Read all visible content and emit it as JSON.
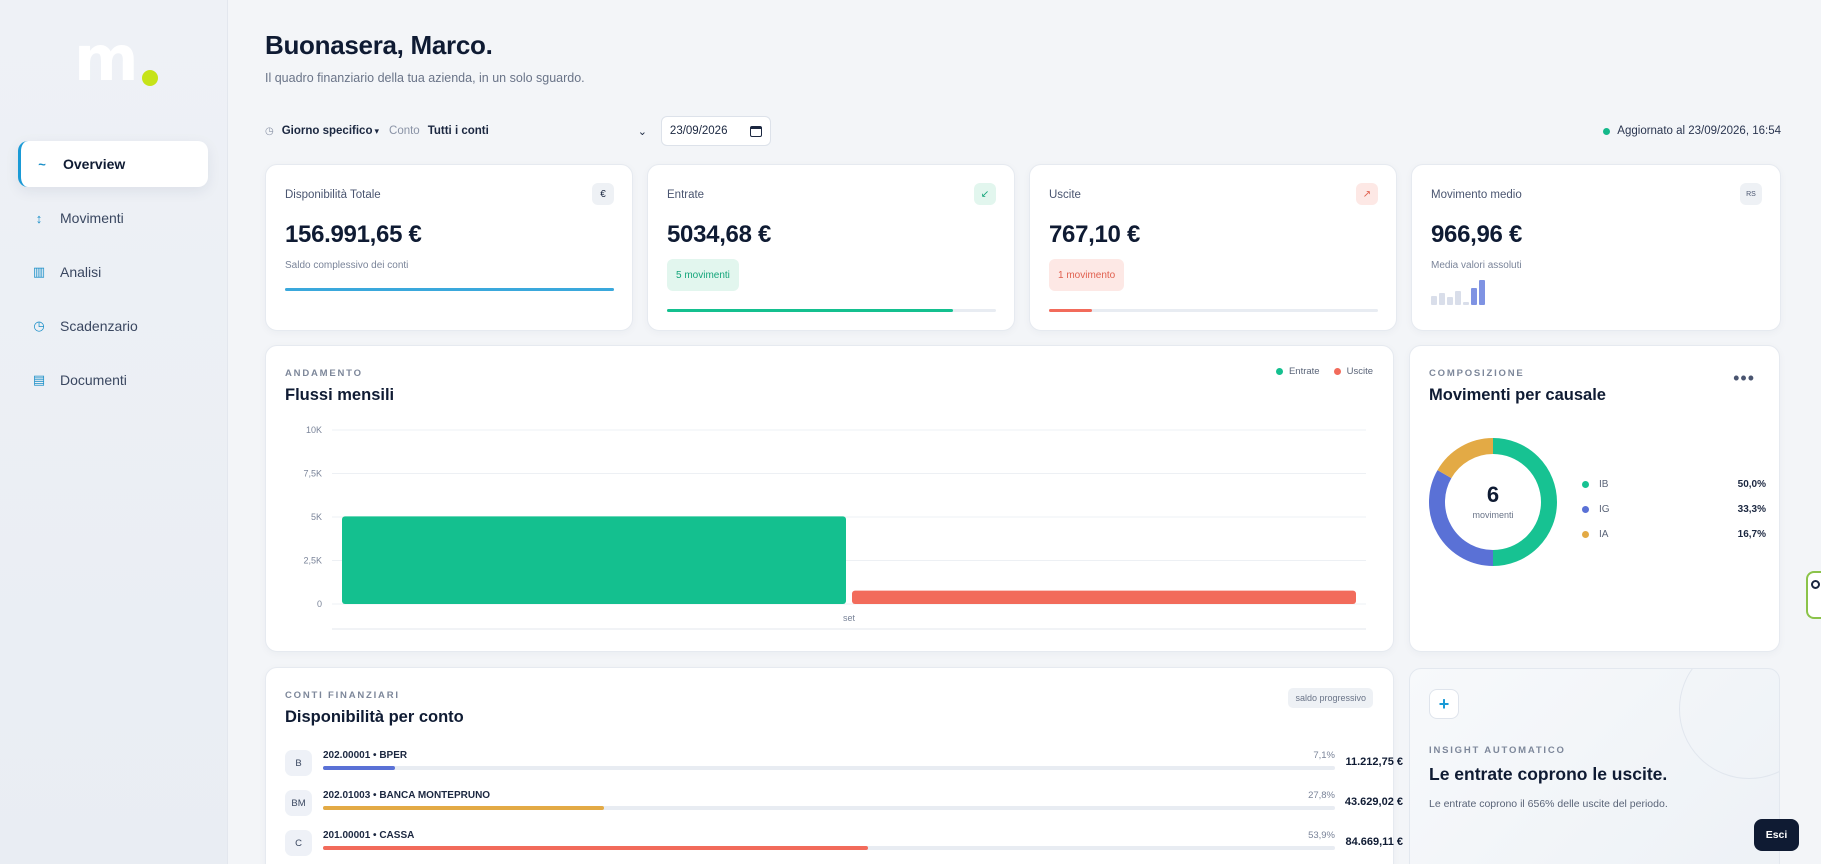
{
  "brand": {
    "logo_letter": "m"
  },
  "sidebar": {
    "items": [
      {
        "label": "Overview",
        "icon": "wave-icon",
        "glyph": "~",
        "active": true
      },
      {
        "label": "Movimenti",
        "icon": "up-down-arrows-icon",
        "glyph": "↕",
        "active": false
      },
      {
        "label": "Analisi",
        "icon": "columns-icon",
        "glyph": "▥",
        "active": false
      },
      {
        "label": "Scadenzario",
        "icon": "clock-icon",
        "glyph": "◷",
        "active": false
      },
      {
        "label": "Documenti",
        "icon": "document-list-icon",
        "glyph": "▤",
        "active": false
      }
    ]
  },
  "header": {
    "greeting": "Buonasera, Marco.",
    "subtitle": "Il quadro finanziario della tua azienda, in un solo sguardo."
  },
  "toolbar": {
    "period_select": "Giorno specifico",
    "account_label": "Conto",
    "account_select": "Tutti i conti",
    "date_value": "23/09/2026",
    "updated_text": "Aggiornato al 23/09/2026, 16:54"
  },
  "kpis": {
    "total": {
      "label": "Disponibilità Totale",
      "badge": "€",
      "value": "156.991,65 €",
      "sub": "Saldo complessivo dei conti",
      "bar_fraction": 1.0
    },
    "income": {
      "label": "Entrate",
      "badge": "↙",
      "value": "5034,68 €",
      "pill": "5 movimenti",
      "bar_fraction": 0.868
    },
    "expenses": {
      "label": "Uscite",
      "badge": "↗",
      "value": "767,10 €",
      "pill": "1 movimento",
      "bar_fraction": 0.132
    },
    "average": {
      "label": "Movimento medio",
      "badge": "RS",
      "value": "966,96 €",
      "sub": "Media valori assoluti",
      "mini_bar_levels": [
        0.35,
        0.45,
        0.3,
        0.55,
        0.12,
        0.65,
        0.95
      ]
    }
  },
  "flows": {
    "section_label": "ANDAMENTO",
    "title": "Flussi mensili",
    "legend": {
      "income": "Entrate",
      "expenses": "Uscite"
    }
  },
  "chart_data": {
    "type": "bar",
    "categories": [
      "set"
    ],
    "series": [
      {
        "name": "Entrate",
        "values": [
          5034.68
        ],
        "color": "#14c08f"
      },
      {
        "name": "Uscite",
        "values": [
          767.1
        ],
        "color": "#f26b5b"
      }
    ],
    "ylim": [
      0,
      10000
    ],
    "yticks": [
      0,
      2500,
      5000,
      7500,
      10000
    ],
    "ytick_labels": [
      "0",
      "2,5K",
      "5K",
      "7,5K",
      "10K"
    ],
    "grid": true,
    "legend": "top-right"
  },
  "composition": {
    "section_label": "COMPOSIZIONE",
    "title": "Movimenti per causale",
    "menu_icon": "more-horizontal-icon",
    "center_value": "6",
    "center_label": "movimenti",
    "slices": [
      {
        "name": "IB",
        "pct": "50,0%",
        "fraction": 0.5,
        "color": "#17c292"
      },
      {
        "name": "IG",
        "pct": "33,3%",
        "fraction": 0.333,
        "color": "#5a71d6"
      },
      {
        "name": "IA",
        "pct": "16,7%",
        "fraction": 0.167,
        "color": "#e3aa45"
      }
    ]
  },
  "accounts": {
    "section_label": "CONTI FINANZIARI",
    "title": "Disponibilità per conto",
    "tag": "saldo progressivo",
    "rows": [
      {
        "badge": "B",
        "name": "202.00001 • BPER",
        "pct": "7,1%",
        "fraction": 0.071,
        "amount": "11.212,75 €",
        "color": "#5a71d6"
      },
      {
        "badge": "BM",
        "name": "202.01003 • BANCA MONTEPRUNO",
        "pct": "27,8%",
        "fraction": 0.278,
        "amount": "43.629,02 €",
        "color": "#e3aa45"
      },
      {
        "badge": "C",
        "name": "201.00001 • CASSA",
        "pct": "53,9%",
        "fraction": 0.539,
        "amount": "84.669,11 €",
        "color": "#f26b5b"
      }
    ]
  },
  "insight": {
    "section_label": "INSIGHT AUTOMATICO",
    "title": "Le entrate coprono le uscite.",
    "text": "Le entrate coprono il 656% delle uscite del periodo."
  },
  "exit_button": "Esci",
  "colors": {
    "accent": "#1a9ad6",
    "income": "#14c08f",
    "expenses": "#f26b5b",
    "navy": "#0f1b33"
  }
}
